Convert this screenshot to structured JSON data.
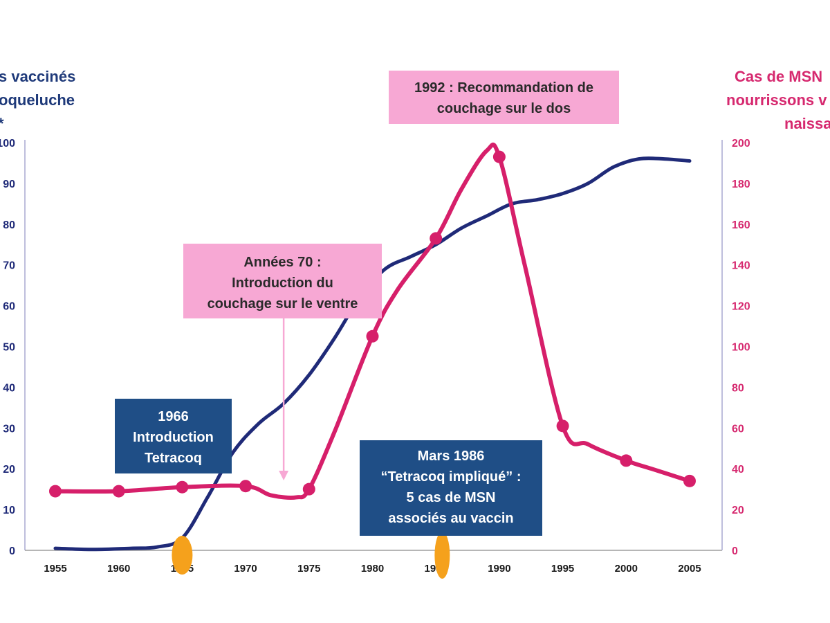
{
  "left_axis_title": [
    "s vaccinés",
    "oqueluche",
    "*"
  ],
  "right_axis_title": [
    "Cas de MSN",
    "nourrissons v",
    "naissa"
  ],
  "annotations": {
    "a1992": [
      "1992 : Recommandation de",
      "couchage sur le dos"
    ],
    "a70": [
      "Années 70 :",
      "Introduction du",
      "couchage sur le ventre"
    ],
    "a1966": [
      "1966",
      "Introduction",
      "Tetracoq"
    ],
    "a1986": [
      "Mars 1986",
      "“Tetracoq impliqué” :",
      "5 cas de MSN",
      "associés au vaccin"
    ]
  },
  "colors": {
    "vaccination_line": "#1f2a78",
    "msn_line": "#d61f6a",
    "left_axis_text": "#1f3a7a",
    "right_axis_text": "#d6296f",
    "box_pink": "#f7a8d4",
    "box_blue": "#1f4e86",
    "arrow": "#f7a8d4",
    "marker_orange": "#f5a11c",
    "axis_line": "#a8a8d0"
  },
  "chart_data": {
    "type": "line",
    "x_tick_labels": [
      "1955",
      "1960",
      "1965",
      "1970",
      "1975",
      "1980",
      "1985",
      "1990",
      "1995",
      "2000",
      "2005"
    ],
    "x_ticks": [
      1955,
      1960,
      1965,
      1970,
      1975,
      1980,
      1985,
      1990,
      1995,
      2000,
      2005
    ],
    "xlim": [
      1955,
      2005
    ],
    "y_left_ticks": [
      "0",
      "10",
      "20",
      "30",
      "40",
      "50",
      "60",
      "70",
      "80",
      "90",
      "100"
    ],
    "y_left_lim": [
      0,
      100
    ],
    "y_right_ticks": [
      "0",
      "20",
      "40",
      "60",
      "80",
      "100",
      "120",
      "140",
      "160",
      "180",
      "200"
    ],
    "y_right_lim": [
      0,
      200
    ],
    "series": [
      {
        "axis": "left",
        "values": [
          [
            1955,
            0.5
          ],
          [
            1958,
            0.2
          ],
          [
            1961,
            0.5
          ],
          [
            1963,
            0.8
          ],
          [
            1965,
            3
          ],
          [
            1967,
            13
          ],
          [
            1969,
            24
          ],
          [
            1971,
            31
          ],
          [
            1973,
            36
          ],
          [
            1975,
            43
          ],
          [
            1977,
            52
          ],
          [
            1979,
            62
          ],
          [
            1981,
            69
          ],
          [
            1983,
            72
          ],
          [
            1985,
            75
          ],
          [
            1987,
            79
          ],
          [
            1989,
            82
          ],
          [
            1991,
            85
          ],
          [
            1993,
            86
          ],
          [
            1995,
            87.5
          ],
          [
            1997,
            90
          ],
          [
            1999,
            94
          ],
          [
            2001,
            96
          ],
          [
            2003,
            96
          ],
          [
            2005,
            95.5
          ]
        ]
      },
      {
        "axis": "right",
        "values": [
          [
            1955,
            29
          ],
          [
            1960,
            29
          ],
          [
            1965,
            31
          ],
          [
            1970,
            31.5
          ],
          [
            1972,
            27
          ],
          [
            1974,
            26
          ],
          [
            1975,
            30
          ],
          [
            1977,
            58
          ],
          [
            1980,
            105
          ],
          [
            1982,
            128
          ],
          [
            1985,
            153
          ],
          [
            1987,
            177
          ],
          [
            1989,
            196
          ],
          [
            1990,
            193
          ],
          [
            1992,
            140
          ],
          [
            1995,
            61
          ],
          [
            1997,
            52
          ],
          [
            2000,
            44
          ],
          [
            2002,
            40
          ],
          [
            2005,
            34
          ]
        ],
        "markers": [
          [
            1955,
            29
          ],
          [
            1960,
            29
          ],
          [
            1965,
            31
          ],
          [
            1970,
            31.5
          ],
          [
            1975,
            30
          ],
          [
            1980,
            105
          ],
          [
            1985,
            153
          ],
          [
            1990,
            193
          ],
          [
            1995,
            61
          ],
          [
            2000,
            44
          ],
          [
            2005,
            34
          ]
        ]
      }
    ],
    "orange_markers_x": [
      1965,
      1985.5
    ],
    "arrow_x": 1973
  }
}
